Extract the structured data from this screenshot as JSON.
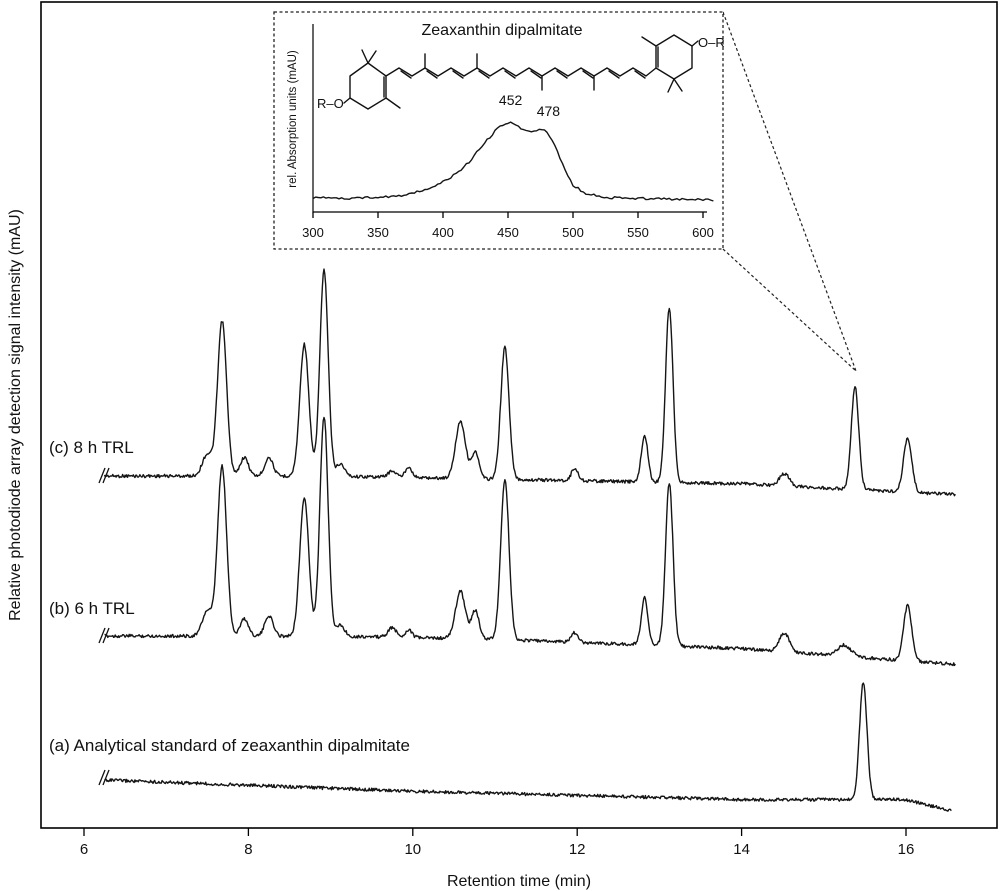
{
  "chart_data": [
    {
      "type": "line",
      "xlabel": "Retention time (min)",
      "ylabel": "Relative photodiode array detection signal intensity (mAU)",
      "xlim": [
        5.5,
        17.1
      ],
      "xticks": [
        "6",
        "8",
        "10",
        "12",
        "14",
        "16"
      ],
      "grid": false,
      "series": [
        {
          "name": "(c) 8 h TRL",
          "color": "#151515",
          "baseline": [
            [
              6.25,
              0.0
            ],
            [
              9.0,
              0.0
            ],
            [
              11.0,
              -0.02
            ],
            [
              14.0,
              -0.05
            ],
            [
              16.6,
              -0.12
            ]
          ],
          "peaks": [
            {
              "rt": 7.5,
              "height": 0.14,
              "width": 0.06
            },
            {
              "rt": 7.68,
              "height": 1.0,
              "width": 0.055
            },
            {
              "rt": 7.95,
              "height": 0.12,
              "width": 0.05
            },
            {
              "rt": 8.25,
              "height": 0.12,
              "width": 0.05
            },
            {
              "rt": 8.68,
              "height": 0.85,
              "width": 0.055
            },
            {
              "rt": 8.92,
              "height": 1.33,
              "width": 0.05
            },
            {
              "rt": 9.12,
              "height": 0.08,
              "width": 0.05
            },
            {
              "rt": 9.75,
              "height": 0.04,
              "width": 0.05
            },
            {
              "rt": 9.95,
              "height": 0.07,
              "width": 0.04
            },
            {
              "rt": 10.58,
              "height": 0.37,
              "width": 0.06
            },
            {
              "rt": 10.76,
              "height": 0.17,
              "width": 0.045
            },
            {
              "rt": 11.12,
              "height": 0.85,
              "width": 0.05
            },
            {
              "rt": 11.97,
              "height": 0.08,
              "width": 0.04
            },
            {
              "rt": 12.82,
              "height": 0.3,
              "width": 0.04
            },
            {
              "rt": 13.12,
              "height": 1.13,
              "width": 0.045
            },
            {
              "rt": 14.52,
              "height": 0.08,
              "width": 0.06
            },
            {
              "rt": 15.38,
              "height": 0.66,
              "width": 0.045
            },
            {
              "rt": 16.02,
              "height": 0.35,
              "width": 0.05
            }
          ]
        },
        {
          "name": "(b) 6 h TRL",
          "color": "#151515",
          "baseline": [
            [
              6.25,
              0.0
            ],
            [
              9.0,
              0.0
            ],
            [
              11.0,
              -0.02
            ],
            [
              14.0,
              -0.08
            ],
            [
              16.6,
              -0.18
            ]
          ],
          "peaks": [
            {
              "rt": 7.5,
              "height": 0.16,
              "width": 0.06
            },
            {
              "rt": 7.68,
              "height": 1.08,
              "width": 0.055
            },
            {
              "rt": 7.95,
              "height": 0.11,
              "width": 0.05
            },
            {
              "rt": 8.25,
              "height": 0.13,
              "width": 0.05
            },
            {
              "rt": 8.68,
              "height": 0.88,
              "width": 0.055
            },
            {
              "rt": 8.92,
              "height": 1.4,
              "width": 0.05
            },
            {
              "rt": 9.12,
              "height": 0.07,
              "width": 0.05
            },
            {
              "rt": 9.75,
              "height": 0.06,
              "width": 0.05
            },
            {
              "rt": 9.95,
              "height": 0.05,
              "width": 0.04
            },
            {
              "rt": 10.58,
              "height": 0.3,
              "width": 0.06
            },
            {
              "rt": 10.76,
              "height": 0.18,
              "width": 0.045
            },
            {
              "rt": 11.12,
              "height": 1.02,
              "width": 0.05
            },
            {
              "rt": 11.97,
              "height": 0.06,
              "width": 0.04
            },
            {
              "rt": 12.82,
              "height": 0.3,
              "width": 0.04
            },
            {
              "rt": 13.12,
              "height": 1.04,
              "width": 0.045
            },
            {
              "rt": 14.52,
              "height": 0.12,
              "width": 0.06
            },
            {
              "rt": 15.25,
              "height": 0.07,
              "width": 0.08
            },
            {
              "rt": 16.02,
              "height": 0.35,
              "width": 0.05
            }
          ]
        },
        {
          "name": "(a) Analytical standard of zeaxanthin dipalmitate",
          "color": "#151515",
          "baseline": [
            [
              6.25,
              0.0
            ],
            [
              10.0,
              -0.08
            ],
            [
              14.0,
              -0.14
            ],
            [
              16.0,
              -0.14
            ],
            [
              16.55,
              -0.22
            ]
          ],
          "peaks": [
            {
              "rt": 15.48,
              "height": 0.84,
              "width": 0.045
            }
          ]
        }
      ]
    },
    {
      "type": "line",
      "title": "Zeaxanthin dipalmitate",
      "xlabel": "",
      "ylabel": "rel. Absorption units (mAU)",
      "xlim": [
        300,
        610
      ],
      "xticks": [
        "300",
        "350",
        "400",
        "450",
        "500",
        "550",
        "600"
      ],
      "annotations": [
        {
          "text": "452",
          "x": 452
        },
        {
          "text": "478",
          "x": 478
        }
      ],
      "series": [
        {
          "name": "UV-Vis absorption spectrum",
          "x": [
            300,
            325,
            350,
            370,
            385,
            400,
            410,
            420,
            430,
            440,
            447,
            452,
            460,
            468,
            473,
            478,
            485,
            492,
            500,
            510,
            525,
            550,
            575,
            608
          ],
          "y": [
            0.03,
            0.02,
            0.03,
            0.06,
            0.12,
            0.22,
            0.32,
            0.46,
            0.66,
            0.84,
            0.93,
            0.95,
            0.87,
            0.83,
            0.86,
            0.86,
            0.71,
            0.43,
            0.18,
            0.08,
            0.03,
            0.02,
            0.01,
            0.0
          ]
        }
      ],
      "structure": {
        "left_substituent": "R–O",
        "right_substituent": "O–R"
      }
    }
  ]
}
